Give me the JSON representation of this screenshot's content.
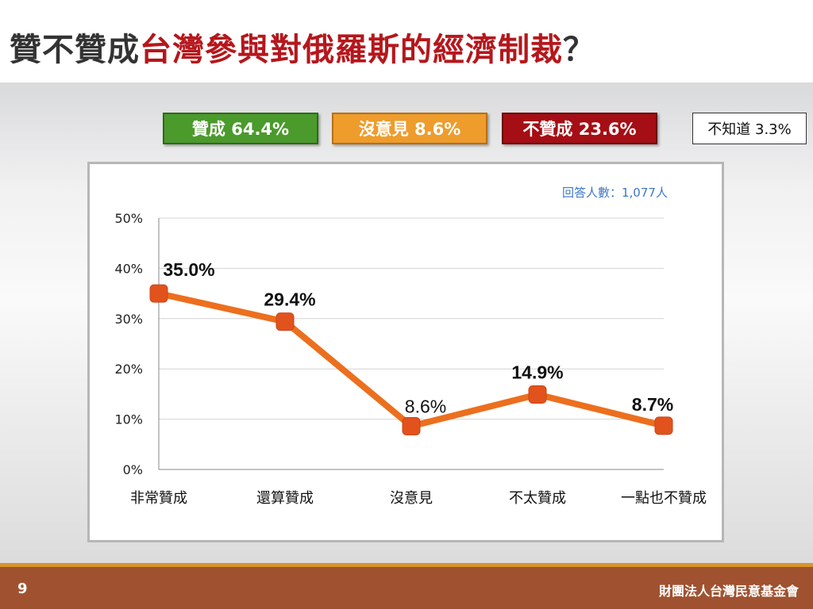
{
  "title": {
    "part1": "贊不贊成",
    "part2": "台灣參與對俄羅斯的經濟制裁",
    "part3": "？"
  },
  "legend": {
    "agree": "贊成 64.4%",
    "no_opinion": "沒意見 8.6%",
    "disagree": "不贊成 23.6%",
    "dont_know": "不知道 3.3%"
  },
  "respondents": "回答人數：1,077人",
  "footer": {
    "page": "9",
    "org": "財團法人台灣民意基金會"
  },
  "colors": {
    "agree": "#4b9a2c",
    "no_opinion": "#ee9c2c",
    "disagree": "#a50e14",
    "line": "#ec6f1e",
    "marker": "#e2521c"
  },
  "chart_data": {
    "type": "line",
    "categories": [
      "非常贊成",
      "還算贊成",
      "沒意見",
      "不太贊成",
      "一點也不贊成"
    ],
    "values": [
      35.0,
      29.4,
      8.6,
      14.9,
      8.7
    ],
    "value_labels": [
      "35.0%",
      "29.4%",
      "8.6%",
      "14.9%",
      "8.7%"
    ],
    "y_ticks": [
      "0%",
      "10%",
      "20%",
      "30%",
      "40%",
      "50%"
    ],
    "ylim": [
      0,
      50
    ],
    "grid": true,
    "legend": "none"
  }
}
